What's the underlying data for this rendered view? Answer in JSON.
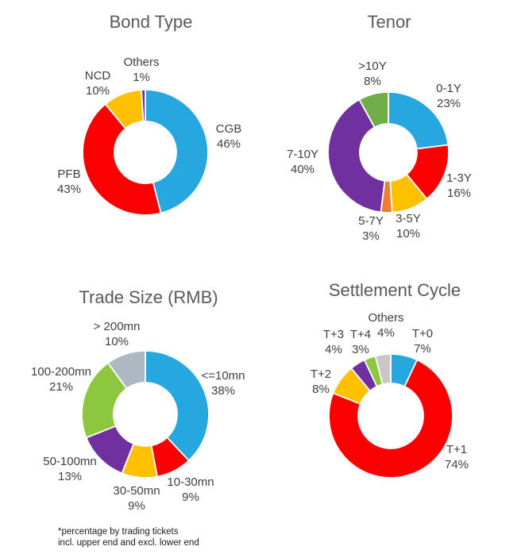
{
  "page": {
    "background": "#ffffff"
  },
  "footnote": {
    "line1": "*percentage by trading tickets",
    "line2": "incl. upper end and excl. lower end"
  },
  "chart_data": [
    {
      "id": "bond-type",
      "type": "pie",
      "subtype": "donut",
      "title": "Bond Type",
      "unit": "%",
      "start_angle": "12-oclock",
      "direction": "clockwise",
      "legend": "none",
      "slices": [
        {
          "label": "CGB",
          "value": 46,
          "pct_label": "46%",
          "color": "#27A7E0"
        },
        {
          "label": "PFB",
          "value": 43,
          "pct_label": "43%",
          "color": "#FA0000"
        },
        {
          "label": "NCD",
          "value": 10,
          "pct_label": "10%",
          "color": "#FFC000"
        },
        {
          "label": "Others",
          "value": 1,
          "pct_label": "1%",
          "color": "#7030A0"
        }
      ]
    },
    {
      "id": "tenor",
      "type": "pie",
      "subtype": "donut",
      "title": "Tenor",
      "unit": "%",
      "start_angle": "12-oclock",
      "direction": "clockwise",
      "legend": "none",
      "slices": [
        {
          "label": "0-1Y",
          "value": 23,
          "pct_label": "23%",
          "color": "#27A7E0"
        },
        {
          "label": "1-3Y",
          "value": 16,
          "pct_label": "16%",
          "color": "#FA0000"
        },
        {
          "label": "3-5Y",
          "value": 10,
          "pct_label": "10%",
          "color": "#FFC000"
        },
        {
          "label": "5-7Y",
          "value": 3,
          "pct_label": "3%",
          "color": "#ED7D31"
        },
        {
          "label": "7-10Y",
          "value": 40,
          "pct_label": "40%",
          "color": "#7030A0"
        },
        {
          "label": ">10Y",
          "value": 8,
          "pct_label": "8%",
          "color": "#70AD47"
        }
      ]
    },
    {
      "id": "trade-size",
      "type": "pie",
      "subtype": "donut",
      "title": "Trade Size (RMB)",
      "unit": "%",
      "start_angle": "12-oclock",
      "direction": "clockwise",
      "legend": "none",
      "slices": [
        {
          "label": "<=10mn",
          "value": 38,
          "pct_label": "38%",
          "color": "#27A7E0"
        },
        {
          "label": "10-30mn",
          "value": 9,
          "pct_label": "9%",
          "color": "#FA0000"
        },
        {
          "label": "30-50mn",
          "value": 9,
          "pct_label": "9%",
          "color": "#FFC000"
        },
        {
          "label": "50-100mn",
          "value": 13,
          "pct_label": "13%",
          "color": "#7030A0"
        },
        {
          "label": "100-200mn",
          "value": 21,
          "pct_label": "21%",
          "color": "#8DC63F"
        },
        {
          "label": "> 200mn",
          "value": 10,
          "pct_label": "10%",
          "color": "#AEB8C3"
        }
      ]
    },
    {
      "id": "settlement-cycle",
      "type": "pie",
      "subtype": "donut",
      "title": "Settlement Cycle",
      "unit": "%",
      "start_angle": "12-oclock",
      "direction": "clockwise",
      "legend": "none",
      "slices": [
        {
          "label": "T+0",
          "value": 7,
          "pct_label": "7%",
          "color": "#27A7E0"
        },
        {
          "label": "T+1",
          "value": 74,
          "pct_label": "74%",
          "color": "#FA0000"
        },
        {
          "label": "T+2",
          "value": 8,
          "pct_label": "8%",
          "color": "#FFC000"
        },
        {
          "label": "T+3",
          "value": 4,
          "pct_label": "4%",
          "color": "#7030A0"
        },
        {
          "label": "T+4",
          "value": 3,
          "pct_label": "3%",
          "color": "#8DC63F"
        },
        {
          "label": "Others",
          "value": 4,
          "pct_label": "4%",
          "color": "#C7C7C7"
        }
      ]
    }
  ]
}
